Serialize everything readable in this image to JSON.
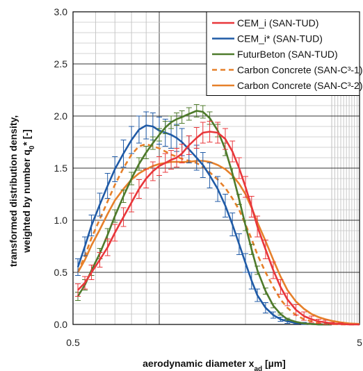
{
  "chart_data": {
    "type": "line",
    "x_scale": "log",
    "xlim": [
      0.5,
      5
    ],
    "ylim": [
      0,
      3
    ],
    "y_ticks": [
      "0.0",
      "0.5",
      "1.0",
      "1.5",
      "2.0",
      "2.5",
      "3.0"
    ],
    "x_tick_labels": [
      "0.5",
      "5"
    ],
    "xlabel_main": "aerodynamic diameter x",
    "xlabel_sub": "ad",
    "xlabel_unit": " [µm]",
    "ylabel_line1": "transformed distribution density,",
    "ylabel_line2_main": "weighted by number q",
    "ylabel_line2_sub": "0",
    "ylabel_line2_tail": "* [-]",
    "grid": true,
    "legend_position": "top-right",
    "series": [
      {
        "name": "CEM_i   (SAN-TUD)",
        "color": "#e8363a",
        "dash": "solid",
        "error_bars": true,
        "x": [
          0.52,
          0.55,
          0.58,
          0.62,
          0.66,
          0.7,
          0.75,
          0.8,
          0.85,
          0.9,
          0.95,
          1.0,
          1.05,
          1.1,
          1.15,
          1.2,
          1.27,
          1.35,
          1.42,
          1.5,
          1.6,
          1.7,
          1.8,
          1.9,
          2.0,
          2.1,
          2.2,
          2.35,
          2.5,
          2.65,
          2.8,
          3.0,
          3.2,
          3.4,
          3.6,
          3.8,
          4.0,
          4.3,
          4.6,
          5.0
        ],
        "y": [
          0.33,
          0.4,
          0.5,
          0.62,
          0.74,
          0.88,
          1.03,
          1.17,
          1.3,
          1.4,
          1.47,
          1.52,
          1.55,
          1.58,
          1.6,
          1.64,
          1.72,
          1.79,
          1.84,
          1.85,
          1.84,
          1.78,
          1.66,
          1.5,
          1.32,
          1.13,
          0.94,
          0.72,
          0.52,
          0.36,
          0.24,
          0.14,
          0.08,
          0.05,
          0.03,
          0.02,
          0.01,
          0.005,
          0.0,
          0.0
        ],
        "err": [
          0.06,
          0.06,
          0.07,
          0.07,
          0.08,
          0.08,
          0.09,
          0.09,
          0.09,
          0.09,
          0.09,
          0.09,
          0.09,
          0.09,
          0.09,
          0.09,
          0.09,
          0.1,
          0.1,
          0.1,
          0.1,
          0.1,
          0.1,
          0.1,
          0.1,
          0.1,
          0.1,
          0.09,
          0.08,
          0.07,
          0.06,
          0.05,
          0.04,
          0.03,
          0.02,
          0.02,
          0.01,
          0.01,
          0.0,
          0.0
        ]
      },
      {
        "name": "CEM_i* (SAN-TUD)",
        "color": "#1f5aa6",
        "dash": "solid",
        "error_bars": true,
        "x": [
          0.52,
          0.55,
          0.58,
          0.62,
          0.66,
          0.7,
          0.75,
          0.8,
          0.85,
          0.9,
          0.95,
          1.0,
          1.05,
          1.1,
          1.15,
          1.2,
          1.27,
          1.35,
          1.42,
          1.5,
          1.6,
          1.7,
          1.8,
          1.9,
          2.0,
          2.1,
          2.2,
          2.35,
          2.5,
          2.65,
          2.8,
          3.0,
          3.2,
          3.4,
          3.6,
          3.8,
          4.0
        ],
        "y": [
          0.55,
          0.75,
          0.95,
          1.15,
          1.33,
          1.49,
          1.64,
          1.77,
          1.87,
          1.91,
          1.9,
          1.86,
          1.84,
          1.82,
          1.79,
          1.75,
          1.68,
          1.6,
          1.53,
          1.43,
          1.3,
          1.14,
          0.96,
          0.77,
          0.59,
          0.42,
          0.28,
          0.16,
          0.09,
          0.05,
          0.03,
          0.015,
          0.01,
          0.005,
          0.0,
          0.0,
          0.0
        ],
        "err": [
          0.08,
          0.09,
          0.1,
          0.11,
          0.12,
          0.12,
          0.13,
          0.13,
          0.13,
          0.13,
          0.13,
          0.13,
          0.13,
          0.13,
          0.13,
          0.13,
          0.13,
          0.12,
          0.12,
          0.12,
          0.12,
          0.11,
          0.11,
          0.1,
          0.09,
          0.08,
          0.06,
          0.05,
          0.03,
          0.02,
          0.02,
          0.01,
          0.01,
          0.0,
          0.0,
          0.0,
          0.0
        ]
      },
      {
        "name": "FuturBeton (SAN-TUD)",
        "color": "#4e7a2b",
        "dash": "solid",
        "error_bars": true,
        "x": [
          0.52,
          0.55,
          0.58,
          0.62,
          0.66,
          0.7,
          0.75,
          0.8,
          0.85,
          0.9,
          0.95,
          1.0,
          1.05,
          1.1,
          1.15,
          1.2,
          1.27,
          1.35,
          1.42,
          1.5,
          1.6,
          1.7,
          1.8,
          1.9,
          2.0,
          2.1,
          2.2,
          2.35,
          2.5,
          2.65,
          2.8,
          3.0,
          3.2,
          3.4,
          3.6,
          3.8,
          4.0
        ],
        "y": [
          0.27,
          0.38,
          0.52,
          0.68,
          0.86,
          1.04,
          1.23,
          1.4,
          1.54,
          1.65,
          1.74,
          1.82,
          1.89,
          1.94,
          1.97,
          1.99,
          2.02,
          2.05,
          2.04,
          1.98,
          1.86,
          1.68,
          1.45,
          1.2,
          0.95,
          0.72,
          0.52,
          0.32,
          0.18,
          0.1,
          0.05,
          0.025,
          0.01,
          0.005,
          0.0,
          0.0,
          0.0
        ],
        "err": [
          0.04,
          0.05,
          0.05,
          0.05,
          0.06,
          0.06,
          0.06,
          0.06,
          0.06,
          0.06,
          0.06,
          0.06,
          0.06,
          0.06,
          0.06,
          0.06,
          0.06,
          0.06,
          0.06,
          0.06,
          0.06,
          0.06,
          0.05,
          0.05,
          0.05,
          0.05,
          0.04,
          0.03,
          0.02,
          0.01,
          0.01,
          0.0,
          0.0,
          0.0,
          0.0,
          0.0,
          0.0
        ]
      },
      {
        "name": "Carbon Concrete (SAN-C³-1)",
        "color": "#e6802a",
        "dash": "dashed",
        "error_bars": false,
        "x": [
          0.52,
          0.55,
          0.58,
          0.62,
          0.66,
          0.7,
          0.75,
          0.8,
          0.85,
          0.9,
          0.95,
          1.0,
          1.05,
          1.1,
          1.15,
          1.2,
          1.27,
          1.35,
          1.42,
          1.5,
          1.6,
          1.7,
          1.8,
          1.9,
          2.0,
          2.1,
          2.2,
          2.35,
          2.5,
          2.65,
          2.8,
          3.0,
          3.2,
          3.4,
          3.6,
          3.8,
          4.0,
          4.3,
          4.6,
          5.0
        ],
        "y": [
          0.5,
          0.66,
          0.83,
          1.01,
          1.18,
          1.34,
          1.5,
          1.63,
          1.71,
          1.73,
          1.71,
          1.69,
          1.66,
          1.63,
          1.61,
          1.59,
          1.57,
          1.55,
          1.51,
          1.46,
          1.39,
          1.31,
          1.21,
          1.1,
          0.96,
          0.82,
          0.67,
          0.5,
          0.36,
          0.24,
          0.16,
          0.09,
          0.05,
          0.03,
          0.015,
          0.01,
          0.005,
          0.0,
          0.0,
          0.0
        ],
        "err": []
      },
      {
        "name": "Carbon Concrete (SAN-C³-2)",
        "color": "#e6802a",
        "dash": "solid",
        "error_bars": false,
        "x": [
          0.52,
          0.55,
          0.58,
          0.62,
          0.66,
          0.7,
          0.75,
          0.8,
          0.85,
          0.9,
          0.95,
          1.0,
          1.05,
          1.1,
          1.15,
          1.2,
          1.27,
          1.35,
          1.42,
          1.5,
          1.6,
          1.7,
          1.8,
          1.9,
          2.0,
          2.1,
          2.2,
          2.35,
          2.5,
          2.65,
          2.8,
          3.0,
          3.2,
          3.4,
          3.6,
          3.8,
          4.0,
          4.3,
          4.6,
          5.0
        ],
        "y": [
          0.5,
          0.62,
          0.76,
          0.91,
          1.06,
          1.19,
          1.3,
          1.39,
          1.45,
          1.49,
          1.52,
          1.54,
          1.55,
          1.56,
          1.56,
          1.56,
          1.56,
          1.57,
          1.57,
          1.56,
          1.53,
          1.49,
          1.43,
          1.35,
          1.25,
          1.12,
          0.98,
          0.8,
          0.62,
          0.46,
          0.33,
          0.22,
          0.15,
          0.1,
          0.07,
          0.05,
          0.035,
          0.02,
          0.01,
          0.005
        ],
        "err": []
      }
    ]
  }
}
